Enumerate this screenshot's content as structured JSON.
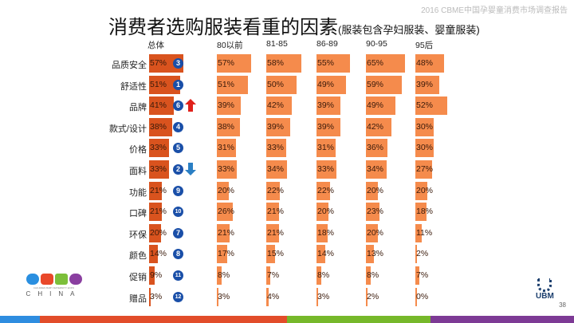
{
  "header": "2016 CBME中国孕婴童消费市场调查报告",
  "title": "消费者选购服装看重的因素",
  "subtitle": "(服装包含孕妇服装、婴童服装)",
  "page_number": "38",
  "logo_left": "CBME CHINA",
  "logo_right": "UBM",
  "chart_data": {
    "type": "bar",
    "title": "消费者选购服装看重的因素",
    "categories": [
      "品质安全",
      "舒适性",
      "品牌",
      "款式/设计",
      "价格",
      "面料",
      "功能",
      "口碑",
      "环保",
      "颜色",
      "促销",
      "赠品"
    ],
    "series": [
      {
        "name": "总体",
        "values": [
          57,
          51,
          41,
          38,
          33,
          33,
          21,
          21,
          20,
          14,
          9,
          3
        ],
        "color": "#d9531e"
      },
      {
        "name": "80以前",
        "values": [
          57,
          51,
          39,
          38,
          31,
          33,
          20,
          26,
          21,
          17,
          8,
          3
        ],
        "color": "#f58b4c"
      },
      {
        "name": "81-85",
        "values": [
          58,
          50,
          42,
          39,
          33,
          34,
          22,
          21,
          21,
          15,
          7,
          4
        ],
        "color": "#f58b4c"
      },
      {
        "name": "86-89",
        "values": [
          55,
          49,
          39,
          39,
          31,
          33,
          22,
          20,
          18,
          14,
          8,
          3
        ],
        "color": "#f58b4c"
      },
      {
        "name": "90-95",
        "values": [
          65,
          59,
          49,
          42,
          36,
          34,
          20,
          23,
          20,
          13,
          8,
          2
        ],
        "color": "#f58b4c"
      },
      {
        "name": "95后",
        "values": [
          48,
          39,
          52,
          30,
          30,
          27,
          20,
          18,
          11,
          2,
          7,
          0
        ],
        "color": "#f58b4c"
      }
    ],
    "ranks": [
      "3",
      "1",
      "6",
      "4",
      "5",
      "2",
      "9",
      "10",
      "7",
      "8",
      "11",
      "12"
    ],
    "rank_changes": [
      "",
      "",
      "up",
      "",
      "",
      "down",
      "",
      "",
      "",
      "",
      "",
      ""
    ],
    "xlim": [
      0,
      100
    ]
  }
}
